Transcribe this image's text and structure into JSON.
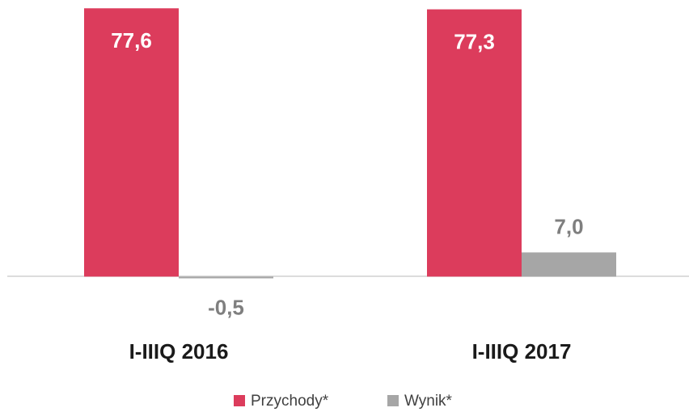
{
  "chart_data": {
    "type": "bar",
    "categories": [
      "I-IIIQ 2016",
      "I-IIIQ 2017"
    ],
    "series": [
      {
        "name": "Przychody*",
        "color": "#dc3c5c",
        "values": [
          77.6,
          77.3
        ],
        "value_labels": [
          "77,6",
          "77,3"
        ]
      },
      {
        "name": "Wynik*",
        "color": "#a6a6a6",
        "values": [
          -0.5,
          7.0
        ],
        "value_labels": [
          "-0,5",
          "7,0"
        ]
      }
    ],
    "ylim": [
      -20,
      80
    ]
  }
}
